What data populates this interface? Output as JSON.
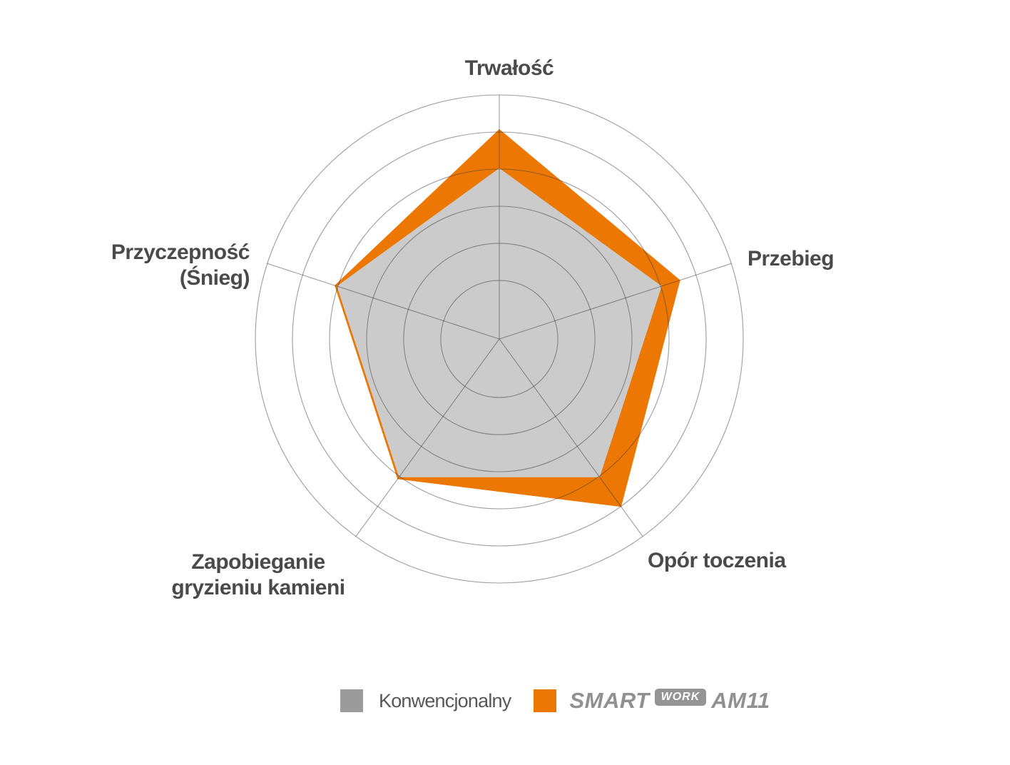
{
  "chart_data": {
    "type": "radar",
    "categories": [
      "Trwałość",
      "Przebieg",
      "Opór toczenia",
      "Zapobieganie gryzieniu kamieni",
      "Przyczepność (Śnieg)"
    ],
    "series": [
      {
        "name": "Konwencjonalny",
        "values": [
          7.0,
          7.0,
          7.0,
          7.0,
          7.0
        ],
        "color": "#cbcbcb",
        "swatch_color": "#9b9b9b"
      },
      {
        "name": "SmartWork AM11",
        "values": [
          8.6,
          7.8,
          8.5,
          7.1,
          7.1
        ],
        "color": "#ed7703",
        "swatch_color": "#ed7703"
      }
    ],
    "scale_max": 10,
    "grid": {
      "shape": "circle",
      "ring_values": [
        2.4,
        3.92,
        5.44,
        6.96,
        8.48,
        10
      ],
      "color": "rgba(60,60,60,0.5)"
    },
    "center": {
      "x": 700,
      "y": 475
    },
    "max_radius": 342,
    "start_angle_deg": 90,
    "legend_position": "bottom"
  },
  "labels": {
    "trwalosc": "Trwałość",
    "przebieg": "Przebieg",
    "przyczepnosc_line1": "Przyczepność",
    "przyczepnosc_line2": "(Śnieg)",
    "zapobieganie_line1": "Zapobieganie",
    "zapobieganie_line2": "gryzieniu kamieni",
    "opor": "Opór toczenia"
  },
  "legend": {
    "series1_label": "Konwencjonalny",
    "series2_logo": {
      "smart": "SMART",
      "work": "WORK",
      "am11": "AM11"
    },
    "text_color": "#58585a",
    "logo_color": "#909090"
  }
}
